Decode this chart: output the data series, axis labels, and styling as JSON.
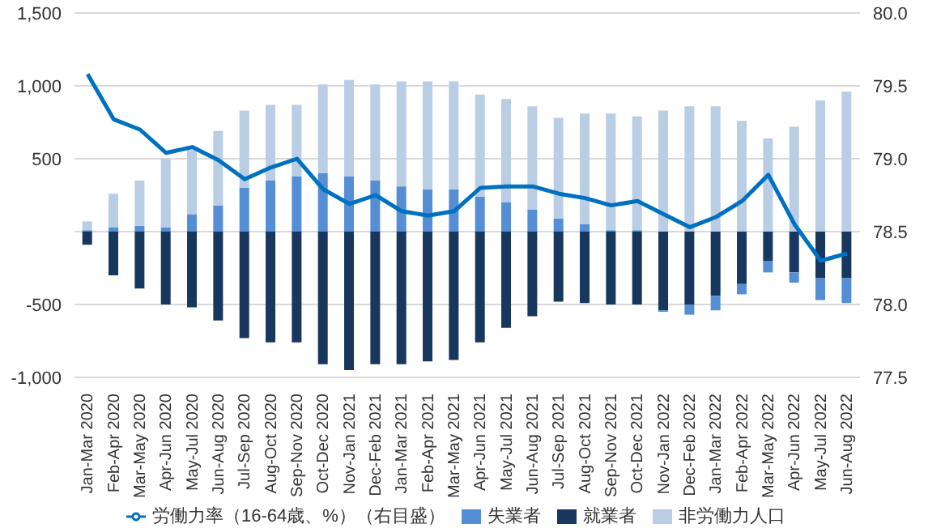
{
  "chart_data": {
    "type": "bar",
    "stacked": true,
    "categories": [
      "Jan-Mar 2020",
      "Feb-Apr 2020",
      "Mar-May 2020",
      "Apr-Jun 2020",
      "May-Jul 2020",
      "Jun-Aug 2020",
      "Jul-Sep 2020",
      "Aug-Oct 2020",
      "Sep-Nov 2020",
      "Oct-Dec 2020",
      "Nov-Jan 2021",
      "Dec-Feb 2021",
      "Jan-Mar 2021",
      "Feb-Apr 2021",
      "Mar-May 2021",
      "Apr-Jun 2021",
      "May-Jul 2021",
      "Jun-Aug 2021",
      "Jul-Sep 2021",
      "Aug-Oct 2021",
      "Sep-Nov 2021",
      "Oct-Dec 2021",
      "Nov-Jan 2022",
      "Dec-Feb 2022",
      "Jan-Mar 2022",
      "Feb-Apr 2022",
      "Mar-May 2022",
      "Apr-Jun 2022",
      "May-Jul 2022",
      "Jun-Aug 2022"
    ],
    "series": [
      {
        "name": "就業者",
        "color": "#17375e",
        "values": [
          -90,
          -300,
          -390,
          -500,
          -520,
          -610,
          -730,
          -760,
          -760,
          -910,
          -950,
          -910,
          -910,
          -890,
          -880,
          -760,
          -660,
          -580,
          -480,
          -490,
          -500,
          -500,
          -540,
          -500,
          -440,
          -360,
          -200,
          -280,
          -320,
          -320
        ]
      },
      {
        "name": "失業者",
        "color": "#558ed5",
        "values": [
          10,
          30,
          40,
          30,
          120,
          180,
          300,
          350,
          380,
          400,
          380,
          350,
          310,
          290,
          290,
          240,
          200,
          150,
          90,
          50,
          10,
          10,
          -10,
          -70,
          -100,
          -70,
          -80,
          -70,
          -150,
          -170
        ]
      },
      {
        "name": "非労働力人口",
        "color": "#b9cde5",
        "values": [
          60,
          230,
          310,
          470,
          440,
          510,
          530,
          520,
          490,
          610,
          660,
          660,
          720,
          740,
          740,
          700,
          710,
          710,
          690,
          760,
          800,
          780,
          830,
          860,
          860,
          760,
          640,
          720,
          900,
          960
        ]
      },
      {
        "name": "労働力率（16-64歳、%）（右目盛）",
        "type": "line",
        "axis": "y2",
        "color": "#0070c0",
        "values": [
          79.58,
          79.27,
          79.2,
          79.04,
          79.08,
          78.99,
          78.86,
          78.94,
          79.0,
          78.79,
          78.69,
          78.75,
          78.64,
          78.61,
          78.64,
          78.8,
          78.81,
          78.81,
          78.76,
          78.73,
          78.68,
          78.71,
          78.62,
          78.53,
          78.6,
          78.71,
          78.89,
          78.55,
          78.3,
          78.35
        ]
      }
    ],
    "ylim": [
      -1000,
      1500
    ],
    "yticks": [
      {
        "value": -1000,
        "label": "-1,000"
      },
      -500,
      {
        "value": 0,
        "label": null
      },
      500,
      {
        "value": 1000,
        "label": "1,000"
      },
      {
        "value": 1500,
        "label": "1,500"
      }
    ],
    "y2lim": [
      77.5,
      80
    ],
    "y2ticks": [
      77.5,
      {
        "value": 78,
        "label": "78.0"
      },
      78.5,
      {
        "value": 79,
        "label": "79.0"
      },
      79.5,
      {
        "value": 80,
        "label": "80.0"
      }
    ],
    "grid": "y",
    "legend": "bottom",
    "marker": "none",
    "line_style": "solid"
  }
}
